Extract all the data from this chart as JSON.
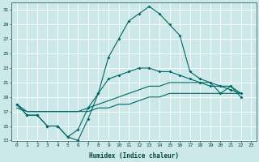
{
  "xlabel": "Humidex (Indice chaleur)",
  "background_color": "#cce8e8",
  "grid_color": "#b0d0d0",
  "line_color": "#006666",
  "xlim": [
    -0.5,
    23.5
  ],
  "ylim": [
    13,
    32
  ],
  "yticks": [
    13,
    15,
    17,
    19,
    21,
    23,
    25,
    27,
    29,
    31
  ],
  "xticks": [
    0,
    1,
    2,
    3,
    4,
    5,
    6,
    7,
    8,
    9,
    10,
    11,
    12,
    13,
    14,
    15,
    16,
    17,
    18,
    19,
    20,
    21,
    22,
    23
  ],
  "series1_x": [
    0,
    1,
    2,
    3,
    4,
    5,
    6,
    7,
    8,
    9,
    10,
    11,
    12,
    13,
    14,
    15,
    16,
    17,
    18,
    19,
    20,
    21,
    22
  ],
  "series1_y": [
    18.0,
    16.5,
    16.5,
    15.0,
    15.0,
    13.5,
    13.0,
    16.0,
    19.5,
    24.5,
    27.0,
    29.5,
    30.5,
    31.5,
    30.5,
    29.0,
    27.5,
    22.5,
    21.5,
    21.0,
    19.5,
    20.5,
    19.0
  ],
  "series2_x": [
    0,
    1,
    2,
    3,
    4,
    5,
    6,
    7,
    8,
    9,
    10,
    11,
    12,
    13,
    14,
    15,
    16,
    17,
    18,
    19,
    20,
    21,
    22
  ],
  "series2_y": [
    18.0,
    16.5,
    16.5,
    15.0,
    15.0,
    13.5,
    14.5,
    17.5,
    19.5,
    21.5,
    22.0,
    22.5,
    23.0,
    23.0,
    22.5,
    22.5,
    22.0,
    21.5,
    21.0,
    20.5,
    20.5,
    20.0,
    19.5
  ],
  "series3_x": [
    0,
    1,
    2,
    3,
    4,
    5,
    6,
    7,
    8,
    9,
    10,
    11,
    12,
    13,
    14,
    15,
    16,
    17,
    18,
    19,
    20,
    21,
    22
  ],
  "series3_y": [
    18.0,
    17.0,
    17.0,
    17.0,
    17.0,
    17.0,
    17.0,
    17.5,
    18.0,
    18.5,
    19.0,
    19.5,
    20.0,
    20.5,
    20.5,
    21.0,
    21.0,
    21.0,
    21.0,
    21.0,
    20.5,
    20.5,
    19.5
  ],
  "series4_x": [
    0,
    1,
    2,
    3,
    4,
    5,
    6,
    7,
    8,
    9,
    10,
    11,
    12,
    13,
    14,
    15,
    16,
    17,
    18,
    19,
    20,
    21,
    22
  ],
  "series4_y": [
    17.5,
    17.0,
    17.0,
    17.0,
    17.0,
    17.0,
    17.0,
    17.0,
    17.5,
    17.5,
    18.0,
    18.0,
    18.5,
    19.0,
    19.0,
    19.5,
    19.5,
    19.5,
    19.5,
    19.5,
    19.5,
    19.5,
    19.5
  ]
}
